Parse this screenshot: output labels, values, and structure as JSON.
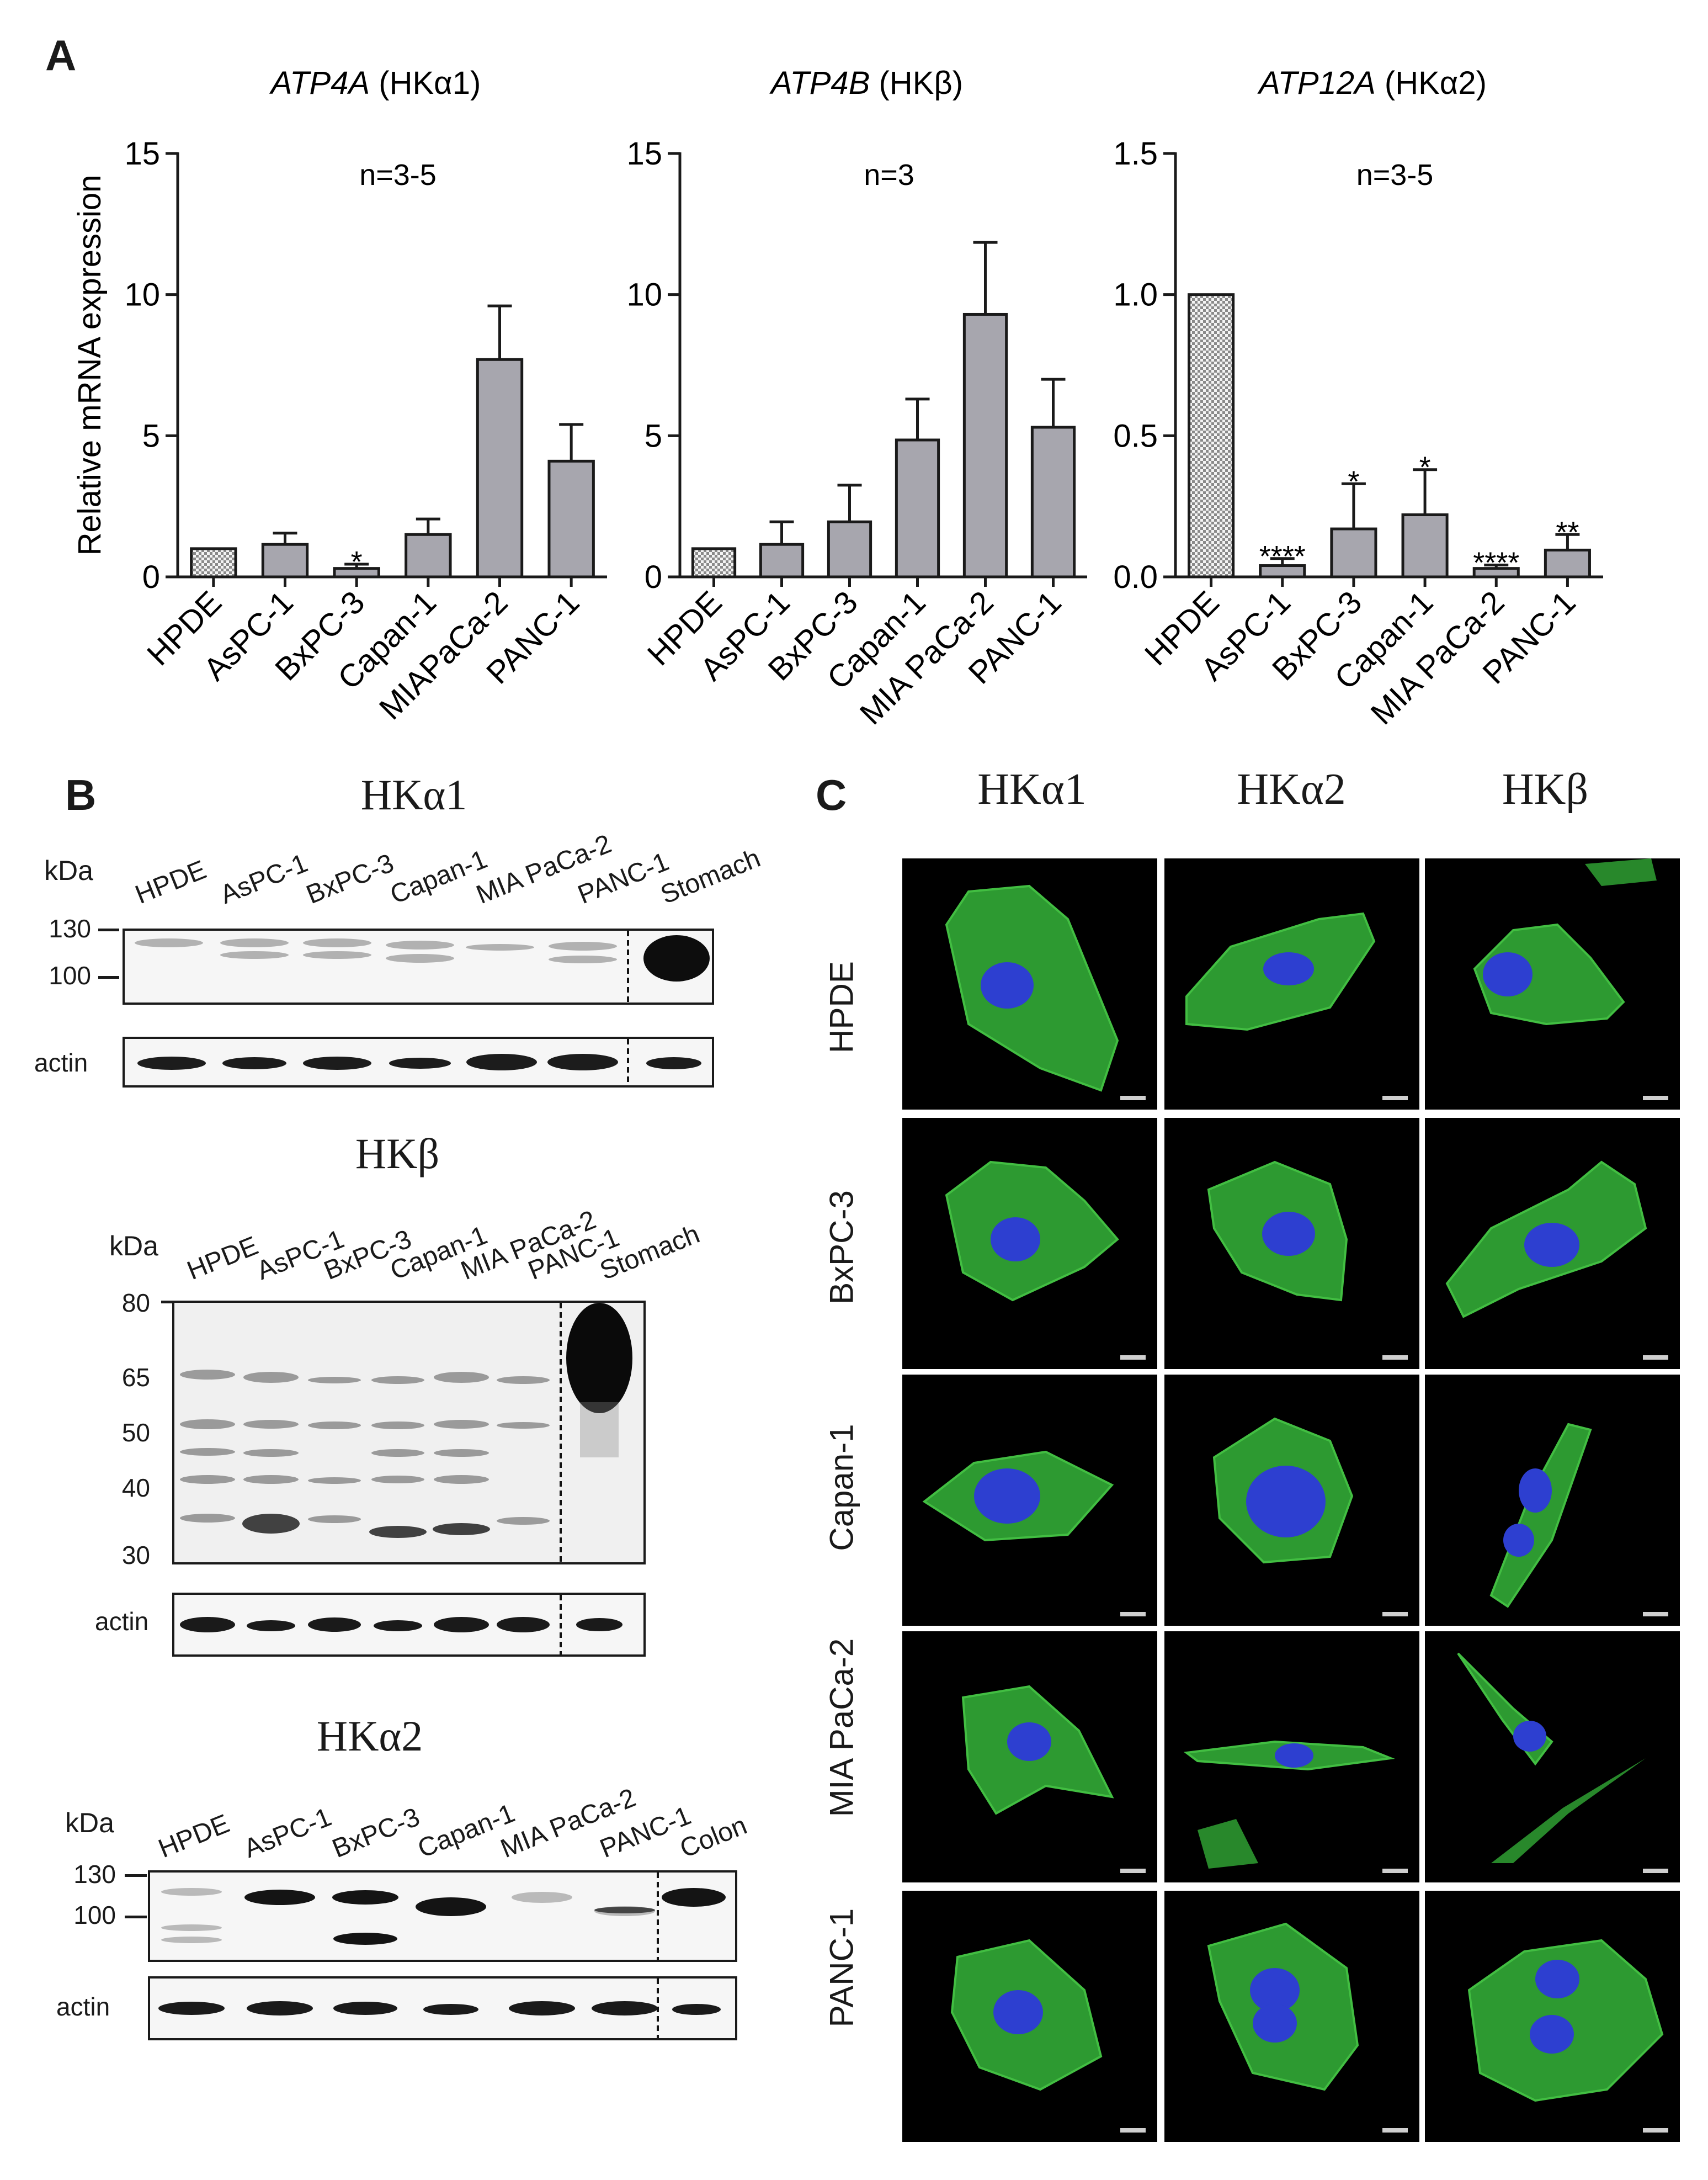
{
  "panels": {
    "a": "A",
    "b": "B",
    "c": "C"
  },
  "chart_data": [
    {
      "type": "bar",
      "title_gene": "ATP4A",
      "title_protein": "(HKα1)",
      "annotation": "n=3-5",
      "ylabel": "Relative mRNA expression",
      "categories": [
        "HPDE",
        "AsPC-1",
        "BxPC-3",
        "Capan-1",
        "MIAPaCa-2",
        "PANC-1"
      ],
      "values": [
        1.0,
        1.15,
        0.3,
        1.5,
        7.7,
        4.1
      ],
      "errors": [
        0.0,
        0.4,
        0.15,
        0.55,
        1.9,
        1.3
      ],
      "significance": [
        "",
        "",
        "*",
        "",
        "",
        ""
      ],
      "ylim": [
        0,
        15
      ],
      "yticks": [
        "0",
        "5",
        "10",
        "15"
      ],
      "tickvals": [
        0,
        5,
        10,
        15
      ]
    },
    {
      "type": "bar",
      "title_gene": "ATP4B",
      "title_protein": "(HKβ)",
      "annotation": "n=3",
      "ylabel": "",
      "categories": [
        "HPDE",
        "AsPC-1",
        "BxPC-3",
        "Capan-1",
        "MIA PaCa-2",
        "PANC-1"
      ],
      "values": [
        1.0,
        1.15,
        1.95,
        4.85,
        9.3,
        5.3
      ],
      "errors": [
        0.0,
        0.8,
        1.3,
        1.45,
        2.55,
        1.7
      ],
      "significance": [
        "",
        "",
        "",
        "",
        "",
        ""
      ],
      "ylim": [
        0,
        15
      ],
      "yticks": [
        "0",
        "5",
        "10",
        "15"
      ],
      "tickvals": [
        0,
        5,
        10,
        15
      ]
    },
    {
      "type": "bar",
      "title_gene": "ATP12A",
      "title_protein": "(HKα2)",
      "annotation": "n=3-5",
      "ylabel": "",
      "categories": [
        "HPDE",
        "AsPC-1",
        "BxPC-3",
        "Capan-1",
        "MIA PaCa-2",
        "PANC-1"
      ],
      "values": [
        1.0,
        0.04,
        0.17,
        0.22,
        0.03,
        0.095
      ],
      "errors": [
        0.0,
        0.025,
        0.16,
        0.16,
        0.012,
        0.055
      ],
      "significance": [
        "",
        "****",
        "*",
        "*",
        "****",
        "**"
      ],
      "ylim": [
        0,
        1.5
      ],
      "yticks": [
        "0.0",
        "0.5",
        "1.0",
        "1.5"
      ],
      "tickvals": [
        0,
        0.5,
        1.0,
        1.5
      ]
    }
  ],
  "blots": [
    {
      "title": "HKα1",
      "kda": "kDa",
      "lanes": [
        "HPDE",
        "AsPC-1",
        "BxPC-3",
        "Capan-1",
        "MIA PaCa-2",
        "PANC-1",
        "Stomach"
      ],
      "markers": [
        "130",
        "100"
      ],
      "actin": "actin"
    },
    {
      "title": "HKβ",
      "kda": "kDa",
      "lanes": [
        "HPDE",
        "AsPC-1",
        "BxPC-3",
        "Capan-1",
        "MIA PaCa-2",
        "PANC-1",
        "Stomach"
      ],
      "markers": [
        "80",
        "65",
        "50",
        "40",
        "30"
      ],
      "actin": "actin"
    },
    {
      "title": "HKα2",
      "kda": "kDa",
      "lanes": [
        "HPDE",
        "AsPC-1",
        "BxPC-3",
        "Capan-1",
        "MIA PaCa-2",
        "PANC-1",
        "Colon"
      ],
      "markers": [
        "130",
        "100"
      ],
      "actin": "actin"
    }
  ],
  "micro": {
    "columns": [
      "HKα1",
      "HKα2",
      "HKβ"
    ],
    "rows": [
      "HPDE",
      "BxPC-3",
      "Capan-1",
      "MIA PaCa-2",
      "PANC-1"
    ]
  },
  "colors": {
    "bar": "#a7a6ae",
    "membrane": "#36b53a",
    "nucleus": "#2d3fd0"
  }
}
